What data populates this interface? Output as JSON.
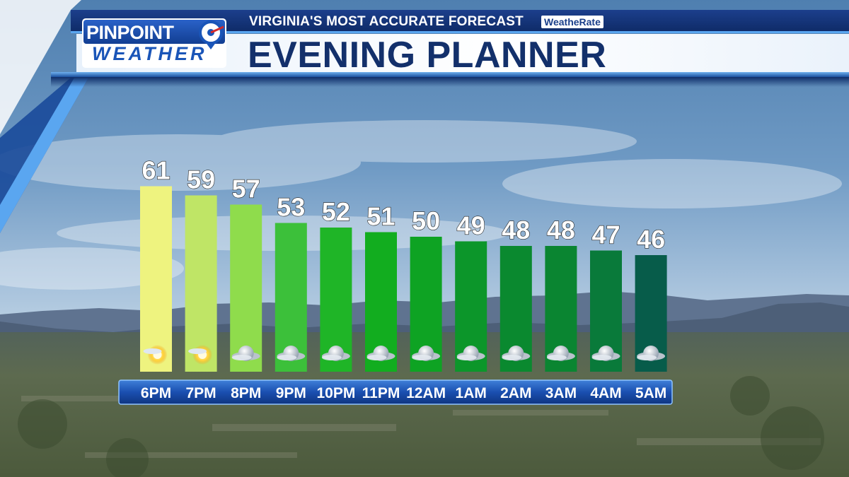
{
  "header": {
    "tagline": "VIRGINIA'S MOST ACCURATE FORECAST",
    "weatherate": "WeatheRate",
    "title": "EVENING PLANNER",
    "logo_line1": "PINPOINT",
    "logo_line2": "WEATHER"
  },
  "colors": {
    "bar_colors": [
      "#eef37f",
      "#bfe566",
      "#8fdc4c",
      "#3cc03a",
      "#1fb527",
      "#12ad1f",
      "#0ea323",
      "#0c962a",
      "#0a892f",
      "#0a8531",
      "#097a3a",
      "#075c4a"
    ],
    "timeline_bar": "#1a4fb0"
  },
  "chart_data": {
    "type": "bar",
    "title": "",
    "xlabel": "",
    "ylabel": "",
    "categories": [
      "6PM",
      "7PM",
      "8PM",
      "9PM",
      "10PM",
      "11PM",
      "12AM",
      "1AM",
      "2AM",
      "3AM",
      "4AM",
      "5AM"
    ],
    "values": [
      61,
      59,
      57,
      53,
      52,
      51,
      50,
      49,
      48,
      48,
      47,
      46
    ],
    "icons": [
      "partly-cloudy-sun-icon",
      "partly-cloudy-sun-icon",
      "partly-cloudy-night-icon",
      "partly-cloudy-night-icon",
      "partly-cloudy-night-icon",
      "partly-cloudy-night-icon",
      "partly-cloudy-night-icon",
      "partly-cloudy-night-icon",
      "partly-cloudy-night-icon",
      "partly-cloudy-night-icon",
      "partly-cloudy-night-icon",
      "partly-cloudy-night-icon"
    ],
    "data_labels": true,
    "grid": false
  }
}
